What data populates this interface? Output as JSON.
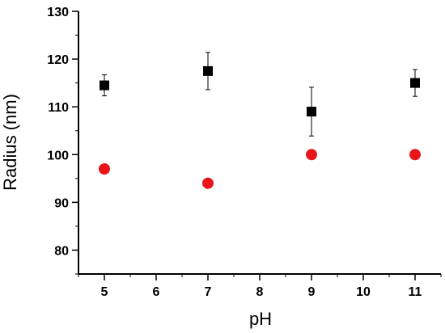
{
  "chart_data": {
    "type": "scatter",
    "title": "",
    "xlabel": "pH",
    "ylabel": "Radius (nm)",
    "xlim": [
      4.5,
      11.5
    ],
    "ylim": [
      75,
      130
    ],
    "xticks": [
      5,
      6,
      7,
      8,
      9,
      10,
      11
    ],
    "yticks": [
      80,
      90,
      100,
      110,
      120,
      130
    ],
    "xtick_labels": [
      "5",
      "6",
      "7",
      "8",
      "9",
      "10",
      "11"
    ],
    "ytick_labels": [
      "80",
      "90",
      "100",
      "110",
      "120",
      "130"
    ],
    "grid": false,
    "legend": "none",
    "series": [
      {
        "marker": "square",
        "color": "#000000",
        "x": [
          5,
          7,
          9,
          11
        ],
        "y": [
          114.5,
          117.5,
          109,
          115
        ],
        "err": [
          2.2,
          3.9,
          5.1,
          2.8
        ]
      },
      {
        "marker": "circle",
        "color": "#e8161b",
        "x": [
          5,
          7,
          9,
          11
        ],
        "y": [
          97,
          94,
          100,
          100
        ]
      }
    ]
  }
}
